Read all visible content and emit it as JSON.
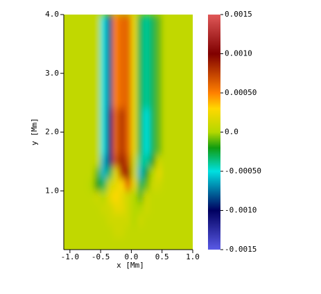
{
  "chart_data": {
    "type": "heatmap",
    "xlabel": "x [Mm]",
    "ylabel": "y [Mm]",
    "xlim": [
      -1.1,
      1.0
    ],
    "xticks": [
      {
        "value": -1.0,
        "label": "-1.0"
      },
      {
        "value": -0.5,
        "label": "-0.5"
      },
      {
        "value": 0.0,
        "label": "0.0"
      },
      {
        "value": 0.5,
        "label": "0.5"
      },
      {
        "value": 1.0,
        "label": "1.0"
      }
    ],
    "ylim": [
      0,
      4.0
    ],
    "yticks": [
      {
        "value": 1.0,
        "label": "1.0"
      },
      {
        "value": 2.0,
        "label": "2.0"
      },
      {
        "value": 3.0,
        "label": "3.0"
      },
      {
        "value": 4.0,
        "label": "4.0"
      }
    ],
    "x": [
      -1.05,
      -0.95,
      -0.85,
      -0.75,
      -0.65,
      -0.55,
      -0.45,
      -0.35,
      -0.25,
      -0.15,
      -0.05,
      0.05,
      0.15,
      0.25,
      0.35,
      0.45,
      0.55,
      0.65,
      0.75,
      0.85,
      0.95
    ],
    "y": [
      3.9,
      3.7,
      3.5,
      3.3,
      3.1,
      2.9,
      2.7,
      2.5,
      2.3,
      2.1,
      1.9,
      1.7,
      1.5,
      1.3,
      1.1,
      0.9,
      0.7,
      0.5,
      0.3,
      0.1
    ],
    "z": [
      [
        5e-05,
        5e-05,
        5e-05,
        5e-05,
        5e-05,
        5e-05,
        -0.0005,
        -0.0008,
        0.0005,
        0.0006,
        0.0006,
        0.0002,
        -0.0003,
        -0.0004,
        -0.0003,
        -0.0001,
        5e-05,
        5e-05,
        5e-05,
        5e-05,
        5e-05
      ],
      [
        5e-05,
        5e-05,
        5e-05,
        5e-05,
        5e-05,
        5e-05,
        -0.0005,
        -0.0008,
        0.0005,
        0.0006,
        0.0006,
        0.0002,
        -0.0003,
        -0.0004,
        -0.0003,
        -0.0001,
        5e-05,
        5e-05,
        5e-05,
        5e-05,
        5e-05
      ],
      [
        5e-05,
        5e-05,
        5e-05,
        5e-05,
        5e-05,
        5e-05,
        -0.0005,
        -0.0008,
        0.0005,
        0.0006,
        0.0006,
        0.0002,
        -0.0003,
        -0.0004,
        -0.0003,
        -0.0001,
        5e-05,
        5e-05,
        5e-05,
        5e-05,
        5e-05
      ],
      [
        5e-05,
        5e-05,
        5e-05,
        5e-05,
        5e-05,
        5e-05,
        -0.0005,
        -0.0008,
        0.0005,
        0.0006,
        0.0006,
        0.0002,
        -0.0003,
        -0.0004,
        -0.0003,
        -0.0001,
        5e-05,
        5e-05,
        5e-05,
        5e-05,
        5e-05
      ],
      [
        5e-05,
        5e-05,
        5e-05,
        5e-05,
        5e-05,
        5e-05,
        -0.0005,
        -0.0008,
        0.0005,
        0.0006,
        0.0006,
        0.0002,
        -0.0003,
        -0.0004,
        -0.0003,
        -0.0001,
        5e-05,
        5e-05,
        5e-05,
        5e-05,
        5e-05
      ],
      [
        5e-05,
        5e-05,
        5e-05,
        5e-05,
        5e-05,
        5e-05,
        -0.0005,
        -0.0008,
        0.0005,
        0.0006,
        0.0006,
        0.0002,
        -0.0003,
        -0.0004,
        -0.0003,
        -0.0001,
        5e-05,
        5e-05,
        5e-05,
        5e-05,
        5e-05
      ],
      [
        5e-05,
        5e-05,
        5e-05,
        5e-05,
        5e-05,
        5e-05,
        -0.0005,
        -0.0008,
        0.0005,
        0.0006,
        0.0006,
        0.0002,
        -0.0003,
        -0.0004,
        -0.0003,
        -0.0001,
        5e-05,
        5e-05,
        5e-05,
        5e-05,
        5e-05
      ],
      [
        5e-05,
        5e-05,
        5e-05,
        5e-05,
        5e-05,
        5e-05,
        -0.0005,
        -0.0008,
        0.0005,
        0.0006,
        0.0006,
        0.0002,
        -0.0003,
        -0.0004,
        -0.0003,
        -0.0001,
        5e-05,
        5e-05,
        5e-05,
        5e-05,
        5e-05
      ],
      [
        5e-05,
        5e-05,
        5e-05,
        5e-05,
        5e-05,
        5e-05,
        -0.0005,
        -0.0011,
        0.0006,
        0.0008,
        0.0006,
        0.0002,
        -0.0003,
        -0.0005,
        -0.0003,
        -0.0001,
        5e-05,
        5e-05,
        5e-05,
        5e-05,
        5e-05
      ],
      [
        5e-05,
        5e-05,
        5e-05,
        5e-05,
        5e-05,
        5e-05,
        -0.0005,
        -0.0011,
        0.0006,
        0.0008,
        0.0006,
        0.0002,
        -0.0003,
        -0.0005,
        -0.0003,
        -0.0001,
        5e-05,
        5e-05,
        5e-05,
        5e-05,
        5e-05
      ],
      [
        5e-05,
        5e-05,
        5e-05,
        5e-05,
        5e-05,
        5e-05,
        -0.0005,
        -0.0011,
        0.0006,
        0.0008,
        0.0006,
        0.0002,
        -0.0003,
        -0.0005,
        -0.0003,
        -0.0001,
        5e-05,
        5e-05,
        5e-05,
        5e-05,
        5e-05
      ],
      [
        5e-05,
        5e-05,
        5e-05,
        5e-05,
        5e-05,
        5e-05,
        -0.0005,
        -0.0011,
        0.0006,
        0.0008,
        0.0006,
        0.0002,
        -0.0003,
        -0.0005,
        -0.0003,
        -0.0001,
        5e-05,
        5e-05,
        5e-05,
        5e-05,
        5e-05
      ],
      [
        5e-05,
        5e-05,
        5e-05,
        5e-05,
        5e-05,
        5e-05,
        -0.0006,
        -0.0009,
        0.0007,
        0.0009,
        0.0007,
        0.0001,
        -0.0004,
        -0.0004,
        -0.0002,
        0.0001,
        5e-05,
        5e-05,
        5e-05,
        5e-05,
        5e-05
      ],
      [
        5e-05,
        5e-05,
        5e-05,
        5e-05,
        5e-05,
        -0.0001,
        -0.0006,
        -0.0003,
        0.0002,
        0.0008,
        0.0009,
        0.0001,
        -0.0006,
        -0.0002,
        0.0,
        0.0002,
        5e-05,
        5e-05,
        5e-05,
        5e-05,
        5e-05
      ],
      [
        5e-05,
        5e-05,
        5e-05,
        5e-05,
        0.0,
        -0.0002,
        -0.0003,
        0.0001,
        0.0002,
        0.0003,
        0.0006,
        0.0002,
        -0.0003,
        -0.0001,
        0.0001,
        0.0001,
        5e-05,
        5e-05,
        5e-05,
        5e-05,
        5e-05
      ],
      [
        5e-05,
        5e-05,
        5e-05,
        5e-05,
        5e-05,
        0.0001,
        0.0,
        0.0002,
        0.0003,
        0.0002,
        0.0001,
        0.0,
        -0.0001,
        0.0001,
        5e-05,
        5e-05,
        5e-05,
        5e-05,
        5e-05,
        5e-05,
        5e-05
      ],
      [
        5e-05,
        5e-05,
        5e-05,
        5e-05,
        5e-05,
        5e-05,
        0.0001,
        0.0001,
        0.0002,
        0.0002,
        0.0001,
        0.0,
        0.0,
        0.0001,
        5e-05,
        5e-05,
        5e-05,
        5e-05,
        5e-05,
        5e-05,
        5e-05
      ],
      [
        5e-05,
        5e-05,
        5e-05,
        5e-05,
        5e-05,
        5e-05,
        5e-05,
        0.0001,
        0.0001,
        0.0001,
        0.0001,
        0.0,
        0.0001,
        5e-05,
        5e-05,
        5e-05,
        5e-05,
        5e-05,
        5e-05,
        5e-05,
        5e-05
      ],
      [
        5e-05,
        5e-05,
        5e-05,
        5e-05,
        5e-05,
        5e-05,
        5e-05,
        5e-05,
        0.0001,
        0.0001,
        5e-05,
        5e-05,
        5e-05,
        5e-05,
        5e-05,
        5e-05,
        5e-05,
        5e-05,
        5e-05,
        5e-05,
        5e-05
      ],
      [
        5e-05,
        5e-05,
        5e-05,
        5e-05,
        5e-05,
        5e-05,
        5e-05,
        5e-05,
        5e-05,
        5e-05,
        5e-05,
        5e-05,
        5e-05,
        5e-05,
        5e-05,
        5e-05,
        5e-05,
        5e-05,
        5e-05,
        5e-05,
        5e-05
      ]
    ],
    "clim": [
      -0.0015,
      0.0015
    ],
    "colorscale": [
      [
        -0.0015,
        "#5a5ae6"
      ],
      [
        -0.001,
        "#000060"
      ],
      [
        -0.0005,
        "#00e0e0"
      ],
      [
        -0.0002,
        "#109c10"
      ],
      [
        0.0,
        "#b4d800"
      ],
      [
        0.0003,
        "#ffd800"
      ],
      [
        0.0005,
        "#ff8000"
      ],
      [
        0.001,
        "#800000"
      ],
      [
        0.0015,
        "#e05858"
      ]
    ],
    "cticks": [
      {
        "value": 0.0015,
        "label": "0.0015"
      },
      {
        "value": 0.001,
        "label": "0.0010"
      },
      {
        "value": 0.0005,
        "label": "0.00050"
      },
      {
        "value": 0.0,
        "label": "0.0"
      },
      {
        "value": -0.0005,
        "label": "-0.00050"
      },
      {
        "value": -0.001,
        "label": "-0.0010"
      },
      {
        "value": -0.0015,
        "label": "-0.0015"
      }
    ]
  }
}
